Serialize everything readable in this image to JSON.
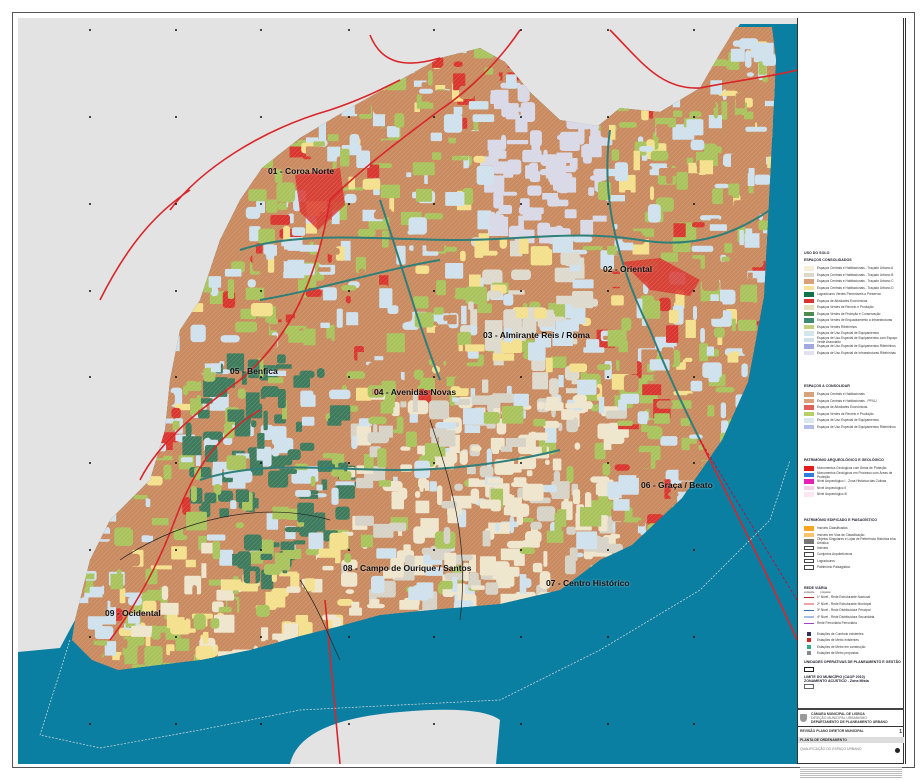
{
  "map": {
    "colors": {
      "river": "#0b7fa2",
      "outside_land": "#e3e3e3",
      "residential_brown": "#c98a5f",
      "equipment_lightblue": "#cfe1ec",
      "green_olive": "#a9c35c",
      "green_dark": "#3d7a5c",
      "airport_lavender": "#d8d8e6",
      "historic_beige": "#eee5cc",
      "yellow": "#f4e08c",
      "economic_red": "#d9342e",
      "highway_red": "#d8262a"
    },
    "districts": [
      {
        "label": "01 - Coroa Norte"
      },
      {
        "label": "02 - Oriental"
      },
      {
        "label": "03 - Almirante Reis / Roma"
      },
      {
        "label": "04 - Avenidas Novas"
      },
      {
        "label": "05 - Benfica"
      },
      {
        "label": "06 - Graça / Beato"
      },
      {
        "label": "07 - Centro Histórico"
      },
      {
        "label": "08 - Campo de Ourique / Santos"
      },
      {
        "label": "09 - Ocidental"
      }
    ]
  },
  "legend": {
    "uso_do_solo": "USO DO SOLO",
    "consolidados": {
      "title": "ESPAÇOS CONSOLIDADOS",
      "items": [
        {
          "label": "Espaços Centrais e Habitacionais - Traçado Urbano A",
          "color": "#f5efd9"
        },
        {
          "label": "Espaços Centrais e Habitacionais - Traçado Urbano B",
          "color": "#dcd8cc"
        },
        {
          "label": "Espaços Centrais e Habitacionais - Traçado Urbano C",
          "color": "#d9a07a"
        },
        {
          "label": "Espaços Centrais e Habitacionais - Traçado Urbano D",
          "color": "#f6e39a"
        },
        {
          "label": "Logradouros Verdes Permeáveis a Preservar",
          "color": "#0f7248"
        },
        {
          "label": "Espaços de Atividades Económicas",
          "color": "#d9342e"
        },
        {
          "label": "Espaços Verdes de Recreio e Produção",
          "color": "#e4e3bd"
        },
        {
          "label": "Espaços Verdes de Proteção e Conservação",
          "color": "#4e8b4e"
        },
        {
          "label": "Espaços Verdes de Enquadramento a Infraestruturas",
          "color": "#3f8a72"
        },
        {
          "label": "Espaços Verdes Ribeirinhos",
          "color": "#c4d07e"
        },
        {
          "label": "Espaços de Uso Especial de Equipamentos",
          "color": "#d3e6ee"
        },
        {
          "label": "Espaços de Uso Especial de Equipamentos com Espaço Verde Associado",
          "color": "#cfe2ea"
        },
        {
          "label": "Espaços de Uso Especial de Equipamentos Ribeirinhos",
          "color": "#9fa8e0"
        },
        {
          "label": "Espaços de Uso Especial de Infraestruturas Ribeirinhas",
          "color": "#e2e2ee"
        }
      ]
    },
    "a_consolidar": {
      "title": "ESPAÇOS A CONSOLIDAR",
      "items": [
        {
          "label": "Espaços Centrais e Habitacionais",
          "color": "#d7a27c"
        },
        {
          "label": "Espaços Centrais e Habitacionais - PP/LU",
          "color": "#d7a27c"
        },
        {
          "label": "Espaços de Atividades Económicas",
          "color": "#e0605a"
        },
        {
          "label": "Espaços Verdes de Recreio e Produção",
          "color": "#b7cf63"
        },
        {
          "label": "Espaços de Uso Especial de Equipamentos",
          "color": "#d9e7ee"
        },
        {
          "label": "Espaços de Uso Especial de Equipamentos Ribeirinhos",
          "color": "#b4bce8"
        }
      ]
    },
    "patrimonio_arq": {
      "title": "PATRIMÓNIO ARQUEOLÓGICO E GEOLÓGICO",
      "items": [
        {
          "label": "Monumentos Geológicos com Áreas de Proteção",
          "color": "#e21c1c"
        },
        {
          "label": "Monumentos Geológicos em Processo com Áreas de Proteção",
          "color": "#2f7be0"
        },
        {
          "label": "Nível Arqueológico I - Zona Histórica das Colinas",
          "color": "#e81fb4"
        },
        {
          "label": "Nível Arqueológico II",
          "color": "#f4d3ea"
        },
        {
          "label": "Nível Arqueológico III",
          "color": "#fbe6f2"
        }
      ]
    },
    "patrimonio_edif": {
      "title": "PATRIMÓNIO EDIFICADO E PAISAGÍSTICO",
      "items": [
        {
          "label": "Imóveis Classificados",
          "color": "#f6a623"
        },
        {
          "label": "Imóveis em Vias de Classificação",
          "color": "#f8c56a"
        },
        {
          "label": "Objetos Singulares e Lojas de Referência Histórica e/ou Artística",
          "color": "#777777"
        },
        {
          "label": "Imóveis",
          "color": "#ffffff"
        },
        {
          "label": "Conjuntos Arquitetónicos",
          "color": "#ffffff"
        },
        {
          "label": "Logradouros",
          "color": "#ffffff"
        },
        {
          "label": "Património Paisagístico",
          "color": "#ffffff"
        }
      ]
    },
    "rede_viaria": {
      "title": "REDE VIÁRIA",
      "columns": [
        "existente",
        "proposta"
      ],
      "items": [
        {
          "label": "1º Nível - Rede Estruturante Nacional",
          "color": "#b3262b"
        },
        {
          "label": "2º Nível - Rede Estruturante Municipal",
          "color": "#f0a3a6"
        },
        {
          "label": "3º Nível - Rede Distribuidora Principal",
          "color": "#3d6fb8"
        },
        {
          "label": "4º Nível - Rede Distribuidora Secundária",
          "color": "#a9bde8"
        },
        {
          "label": "Rede Ferroviária Ferroviária",
          "color": "#a240c8"
        }
      ],
      "stations": [
        {
          "label": "Estações de Comboio existentes"
        },
        {
          "label": "Estações de Metro existentes"
        },
        {
          "label": "Estações de Metro em construção"
        },
        {
          "label": "Estações de Metro propostas"
        }
      ]
    },
    "uopg": {
      "title": "UNIDADES OPERATIVAS DE PLANEAMENTO E GESTÃO"
    },
    "limite": {
      "title": "LIMITE DO MUNICÍPIO (CAOP 2010)",
      "acoustic": "ZONAMENTO ACÚSTICO - Zona Mista"
    }
  },
  "title_block": {
    "org": "CÂMARA MUNICIPAL DE LISBOA",
    "direction": "DIREÇÃO MUNICIPAL URBANISMO",
    "department": "DEPARTAMENTO DE PLANEAMENTO URBANO",
    "plan": "REVISÃO PLANO DIRETOR MUNICIPAL",
    "sheet_type": "PLANTA DE ORDENAMENTO",
    "sheet_title": "QUALIFICAÇÃO DO ESPAÇO URBANO",
    "sheet_number": "1"
  }
}
